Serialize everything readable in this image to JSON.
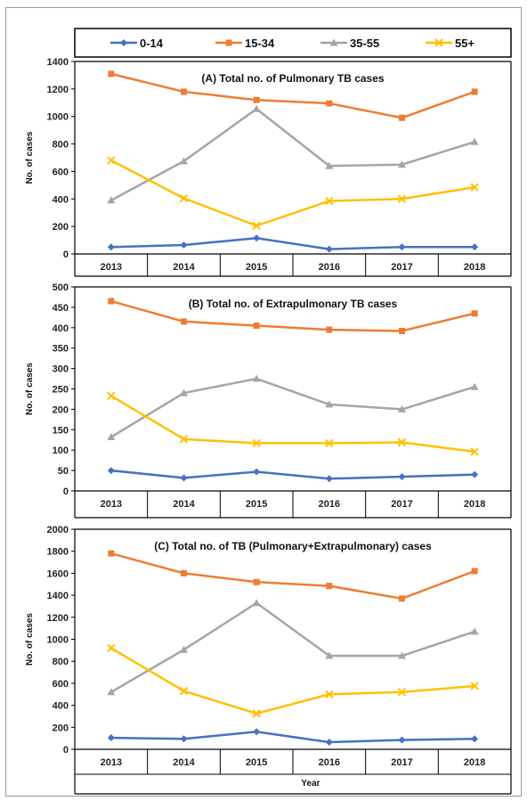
{
  "legend": {
    "items": [
      {
        "label": "0-14",
        "color": "#4472C4",
        "marker": "diamond"
      },
      {
        "label": "15-34",
        "color": "#ED7D31",
        "marker": "square"
      },
      {
        "label": "35-55",
        "color": "#A5A5A5",
        "marker": "triangle"
      },
      {
        "label": "55+",
        "color": "#FFC000",
        "marker": "x"
      }
    ]
  },
  "chart_data": [
    {
      "type": "line",
      "title": "(A) Total no. of Pulmonary TB cases",
      "xlabel": "",
      "ylabel": "No. of cases",
      "categories": [
        "2013",
        "2014",
        "2015",
        "2016",
        "2017",
        "2018"
      ],
      "ylim": [
        0,
        1400
      ],
      "yticks": [
        0,
        200,
        400,
        600,
        800,
        1000,
        1200,
        1400
      ],
      "series": [
        {
          "name": "0-14",
          "values": [
            50,
            65,
            115,
            35,
            50,
            50
          ]
        },
        {
          "name": "15-34",
          "values": [
            1310,
            1180,
            1120,
            1095,
            990,
            1180
          ]
        },
        {
          "name": "35-55",
          "values": [
            390,
            675,
            1055,
            640,
            650,
            815
          ]
        },
        {
          "name": "55+",
          "values": [
            680,
            405,
            205,
            385,
            400,
            485
          ]
        }
      ]
    },
    {
      "type": "line",
      "title": "(B) Total no. of Extrapulmonary TB cases",
      "xlabel": "",
      "ylabel": "No. of cases",
      "categories": [
        "2013",
        "2014",
        "2015",
        "2016",
        "2017",
        "2018"
      ],
      "ylim": [
        0,
        500
      ],
      "yticks": [
        0,
        50,
        100,
        150,
        200,
        250,
        300,
        350,
        400,
        450,
        500
      ],
      "series": [
        {
          "name": "0-14",
          "values": [
            50,
            32,
            47,
            30,
            35,
            40
          ]
        },
        {
          "name": "15-34",
          "values": [
            465,
            415,
            405,
            395,
            392,
            435
          ]
        },
        {
          "name": "35-55",
          "values": [
            132,
            240,
            275,
            212,
            200,
            255
          ]
        },
        {
          "name": "55+",
          "values": [
            233,
            127,
            117,
            117,
            119,
            96
          ]
        }
      ]
    },
    {
      "type": "line",
      "title": "(C) Total no. of TB (Pulmonary+Extrapulmonary) cases",
      "xlabel": "Year",
      "ylabel": "No. of cases",
      "categories": [
        "2013",
        "2014",
        "2015",
        "2016",
        "2017",
        "2018"
      ],
      "ylim": [
        0,
        2000
      ],
      "yticks": [
        0,
        200,
        400,
        600,
        800,
        1000,
        1200,
        1400,
        1600,
        1800,
        2000
      ],
      "series": [
        {
          "name": "0-14",
          "values": [
            105,
            95,
            160,
            65,
            85,
            95
          ]
        },
        {
          "name": "15-34",
          "values": [
            1780,
            1600,
            1520,
            1485,
            1370,
            1620
          ]
        },
        {
          "name": "35-55",
          "values": [
            520,
            905,
            1330,
            850,
            850,
            1070
          ]
        },
        {
          "name": "55+",
          "values": [
            920,
            530,
            325,
            500,
            520,
            575
          ]
        }
      ]
    }
  ]
}
